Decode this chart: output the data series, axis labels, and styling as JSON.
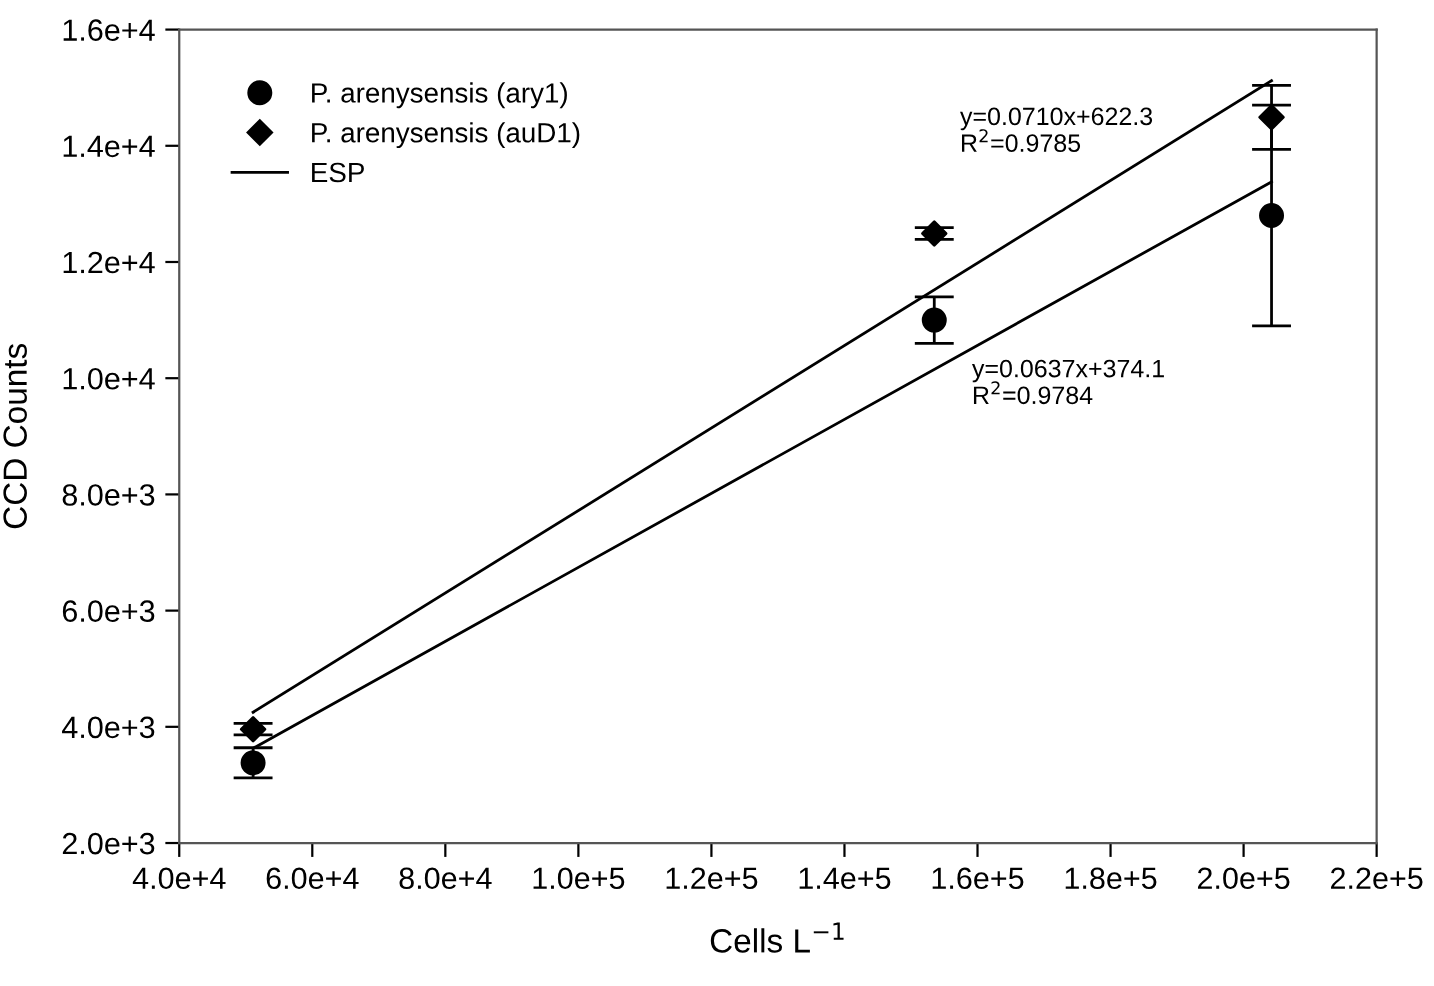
{
  "chart_data": {
    "type": "scatter",
    "xlabel": "Cells L$^{−1}$",
    "ylabel": "CCD Counts",
    "xlim": [
      40000,
      220000
    ],
    "ylim": [
      2000,
      16000
    ],
    "xticks": [
      {
        "value": 40000,
        "label": "4.0e+4"
      },
      {
        "value": 60000,
        "label": "6.0e+4"
      },
      {
        "value": 80000,
        "label": "8.0e+4"
      },
      {
        "value": 100000,
        "label": "1.0e+5"
      },
      {
        "value": 120000,
        "label": "1.2e+5"
      },
      {
        "value": 140000,
        "label": "1.4e+5"
      },
      {
        "value": 160000,
        "label": "1.6e+5"
      },
      {
        "value": 180000,
        "label": "1.8e+5"
      },
      {
        "value": 200000,
        "label": "2.0e+5"
      },
      {
        "value": 220000,
        "label": "2.2e+5"
      }
    ],
    "yticks": [
      {
        "value": 2000,
        "label": "2.0e+3"
      },
      {
        "value": 4000,
        "label": "4.0e+3"
      },
      {
        "value": 6000,
        "label": "6.0e+3"
      },
      {
        "value": 8000,
        "label": "8.0e+3"
      },
      {
        "value": 10000,
        "label": "1.0e+4"
      },
      {
        "value": 12000,
        "label": "1.2e+4"
      },
      {
        "value": 14000,
        "label": "1.4e+4"
      },
      {
        "value": 16000,
        "label": "1.6e+4"
      }
    ],
    "series": [
      {
        "name": "P. arenysensis (ary1)",
        "marker": "circle",
        "color": "#000000",
        "x": [
          51100,
          153500,
          204200
        ],
        "values": [
          3380,
          11000,
          12800
        ],
        "errors": [
          260,
          400,
          1900
        ]
      },
      {
        "name": "P. arenysensis (auD1)",
        "marker": "diamond",
        "color": "#000000",
        "x": [
          51100,
          153500,
          204200
        ],
        "values": [
          3960,
          12490,
          14490
        ],
        "errors": [
          100,
          100,
          550
        ]
      },
      {
        "name": "ESP",
        "type": "line",
        "marker": "none",
        "color": "#000000",
        "x": [
          51100,
          204200
        ],
        "values": [
          4250,
          15120
        ]
      },
      {
        "type": "line",
        "marker": "none",
        "color": "#000000",
        "x": [
          51100,
          204200
        ],
        "values": [
          3630,
          13380
        ]
      }
    ],
    "annotations": [
      "y=0.0710x+622.3\nR$^{2}$=0.9785",
      "y=0.0637x+374.1\nR$^{2}$=0.9784"
    ],
    "legend": "top left",
    "grid": false
  }
}
